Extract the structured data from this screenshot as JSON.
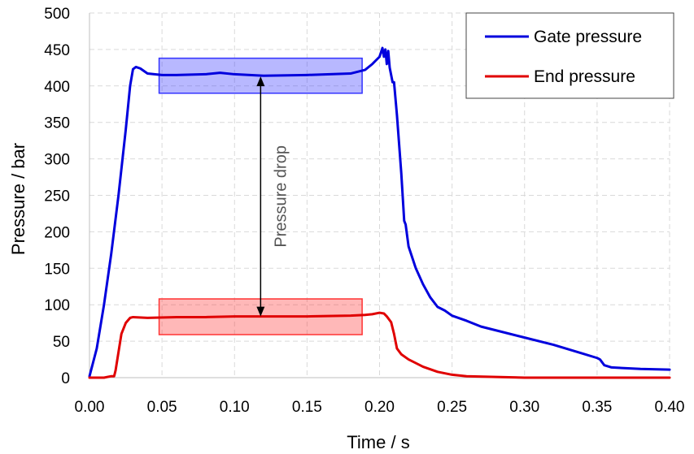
{
  "chart_data": {
    "type": "line",
    "xlabel": "Time / s",
    "ylabel": "Pressure / bar",
    "xlim": [
      0,
      0.4
    ],
    "ylim": [
      0,
      500
    ],
    "x_ticks": [
      "0.00",
      "0.05",
      "0.10",
      "0.15",
      "0.20",
      "0.25",
      "0.30",
      "0.35",
      "0.40"
    ],
    "y_ticks": [
      "0",
      "50",
      "100",
      "150",
      "200",
      "250",
      "300",
      "350",
      "400",
      "450",
      "500"
    ],
    "grid": true,
    "legend_position": "top-right",
    "series": [
      {
        "name": "Gate pressure",
        "color": "#0000dd",
        "points": [
          [
            0.0,
            2
          ],
          [
            0.005,
            40
          ],
          [
            0.01,
            100
          ],
          [
            0.015,
            170
          ],
          [
            0.02,
            250
          ],
          [
            0.025,
            340
          ],
          [
            0.028,
            400
          ],
          [
            0.03,
            423
          ],
          [
            0.032,
            426
          ],
          [
            0.035,
            424
          ],
          [
            0.04,
            417
          ],
          [
            0.05,
            415
          ],
          [
            0.06,
            415
          ],
          [
            0.08,
            416
          ],
          [
            0.09,
            418
          ],
          [
            0.1,
            416
          ],
          [
            0.12,
            414
          ],
          [
            0.15,
            415
          ],
          [
            0.18,
            417
          ],
          [
            0.19,
            422
          ],
          [
            0.195,
            430
          ],
          [
            0.2,
            440
          ],
          [
            0.202,
            452
          ],
          [
            0.203,
            440
          ],
          [
            0.204,
            450
          ],
          [
            0.205,
            430
          ],
          [
            0.206,
            448
          ],
          [
            0.207,
            425
          ],
          [
            0.209,
            405
          ],
          [
            0.21,
            405
          ],
          [
            0.212,
            360
          ],
          [
            0.215,
            280
          ],
          [
            0.217,
            215
          ],
          [
            0.218,
            210
          ],
          [
            0.22,
            180
          ],
          [
            0.225,
            150
          ],
          [
            0.23,
            128
          ],
          [
            0.235,
            110
          ],
          [
            0.24,
            97
          ],
          [
            0.245,
            92
          ],
          [
            0.25,
            85
          ],
          [
            0.26,
            78
          ],
          [
            0.27,
            70
          ],
          [
            0.28,
            65
          ],
          [
            0.3,
            55
          ],
          [
            0.32,
            45
          ],
          [
            0.34,
            33
          ],
          [
            0.35,
            27
          ],
          [
            0.352,
            25
          ],
          [
            0.355,
            17
          ],
          [
            0.36,
            14
          ],
          [
            0.38,
            12
          ],
          [
            0.4,
            11
          ]
        ]
      },
      {
        "name": "End pressure",
        "color": "#e00000",
        "points": [
          [
            0.0,
            0
          ],
          [
            0.01,
            0
          ],
          [
            0.015,
            2
          ],
          [
            0.017,
            2
          ],
          [
            0.018,
            10
          ],
          [
            0.02,
            35
          ],
          [
            0.022,
            60
          ],
          [
            0.025,
            75
          ],
          [
            0.028,
            82
          ],
          [
            0.03,
            83
          ],
          [
            0.04,
            82
          ],
          [
            0.06,
            83
          ],
          [
            0.08,
            83
          ],
          [
            0.1,
            84
          ],
          [
            0.12,
            84
          ],
          [
            0.15,
            84
          ],
          [
            0.18,
            85
          ],
          [
            0.19,
            86
          ],
          [
            0.195,
            87
          ],
          [
            0.2,
            89
          ],
          [
            0.203,
            88
          ],
          [
            0.205,
            84
          ],
          [
            0.208,
            76
          ],
          [
            0.21,
            60
          ],
          [
            0.212,
            40
          ],
          [
            0.215,
            32
          ],
          [
            0.22,
            25
          ],
          [
            0.23,
            15
          ],
          [
            0.24,
            8
          ],
          [
            0.25,
            4
          ],
          [
            0.26,
            2
          ],
          [
            0.28,
            1
          ],
          [
            0.3,
            0
          ],
          [
            0.4,
            0
          ]
        ]
      }
    ],
    "annotation": {
      "text": "Pressure drop",
      "x": 0.118,
      "from_y": 413,
      "to_y": 84
    },
    "highlight_boxes": [
      {
        "x0": 0.048,
        "x1": 0.188,
        "y0": 390,
        "y1": 438,
        "color": "#3333ff"
      },
      {
        "x0": 0.048,
        "x1": 0.188,
        "y0": 59,
        "y1": 108,
        "color": "#ff3333"
      }
    ]
  }
}
